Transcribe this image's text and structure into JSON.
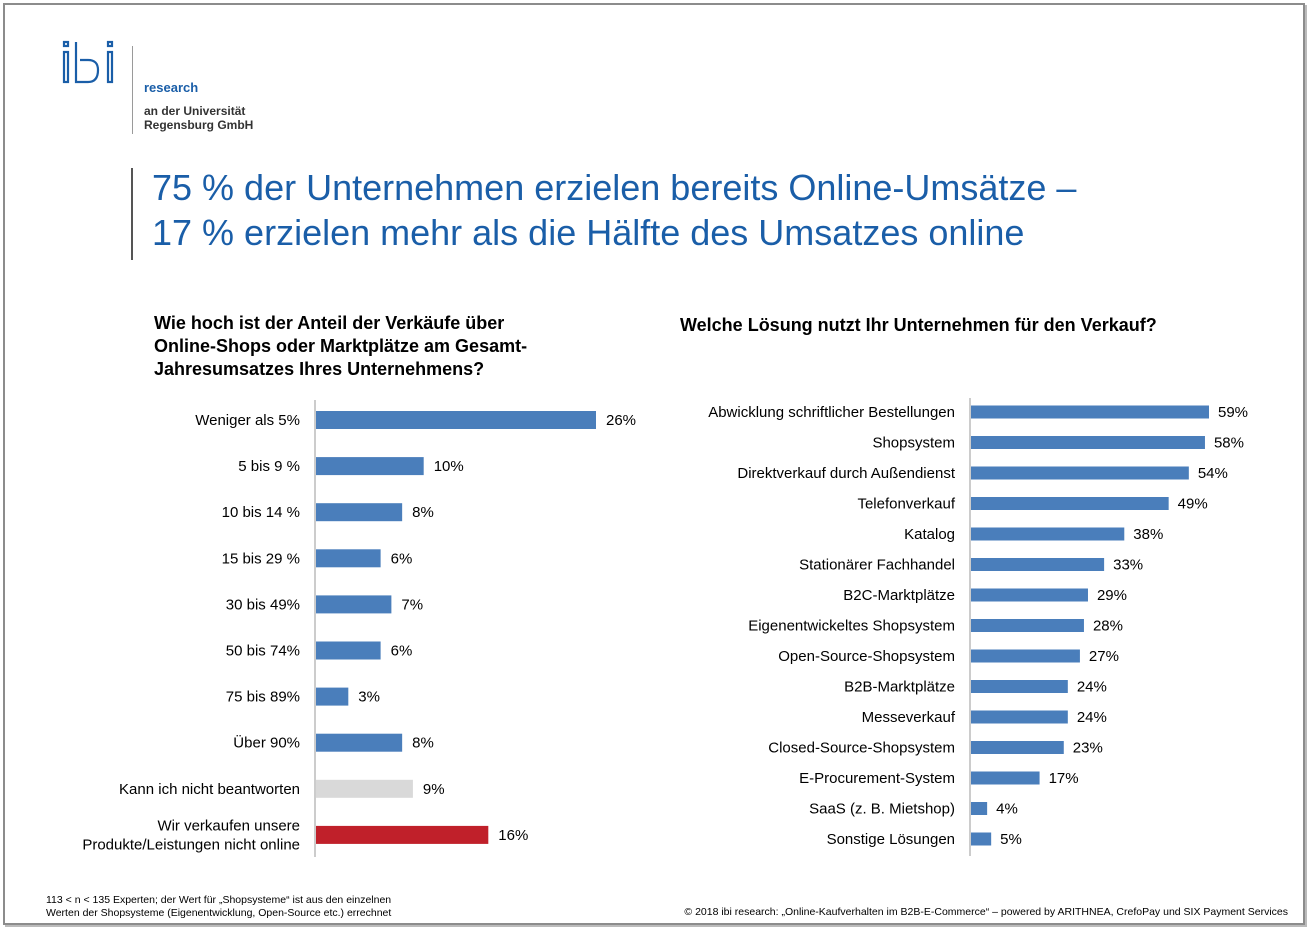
{
  "logo": {
    "research": "research",
    "uni_line1": "an der Universität",
    "uni_line2": "Regensburg GmbH"
  },
  "title": {
    "line1": "75 % der Unternehmen erzielen bereits Online-Umsätze –",
    "line2": "17 % erzielen mehr als die Hälfte des Umsatzes online"
  },
  "left_question": {
    "line1": "Wie hoch ist der Anteil der Verkäufe über",
    "line2": "Online-Shops oder Marktplätze am Gesamt-",
    "line3": "Jahresumsatzes Ihres Unternehmens?"
  },
  "right_question": "Welche Lösung nutzt Ihr Unternehmen für den Verkauf?",
  "colors": {
    "blue": "#4a7ebb",
    "gray": "#d9d9d9",
    "red": "#c0202a",
    "title": "#1a5ea8"
  },
  "chart_data": [
    {
      "type": "bar",
      "orientation": "horizontal",
      "categories": [
        [
          "Weniger als 5%"
        ],
        [
          "5 bis 9 %"
        ],
        [
          "10 bis 14 %"
        ],
        [
          "15 bis 29 %"
        ],
        [
          "30 bis 49%"
        ],
        [
          "50 bis 74%"
        ],
        [
          "75 bis 89%"
        ],
        [
          "Über 90%"
        ],
        [
          "Kann ich nicht beantworten"
        ],
        [
          "Wir verkaufen unsere",
          "Produkte/Leistungen nicht online"
        ]
      ],
      "values": [
        26,
        10,
        8,
        6,
        7,
        6,
        3,
        8,
        9,
        16
      ],
      "value_labels": [
        "26%",
        "10%",
        "8%",
        "6%",
        "7%",
        "6%",
        "3%",
        "8%",
        "9%",
        "16%"
      ],
      "bar_colors": [
        "blue",
        "blue",
        "blue",
        "blue",
        "blue",
        "blue",
        "blue",
        "blue",
        "gray",
        "red"
      ]
    },
    {
      "type": "bar",
      "orientation": "horizontal",
      "categories": [
        "Abwicklung schriftlicher Bestellungen",
        "Shopsystem",
        "Direktverkauf durch Außendienst",
        "Telefonverkauf",
        "Katalog",
        "Stationärer Fachhandel",
        "B2C-Marktplätze",
        "Eigenentwickeltes Shopsystem",
        "Open-Source-Shopsystem",
        "B2B-Marktplätze",
        "Messeverkauf",
        "Closed-Source-Shopsystem",
        "E-Procurement-System",
        "SaaS (z. B. Mietshop)",
        "Sonstige Lösungen"
      ],
      "values": [
        59,
        58,
        54,
        49,
        38,
        33,
        29,
        28,
        27,
        24,
        24,
        23,
        17,
        4,
        5
      ],
      "value_labels": [
        "59%",
        "58%",
        "54%",
        "49%",
        "38%",
        "33%",
        "29%",
        "28%",
        "27%",
        "24%",
        "24%",
        "23%",
        "17%",
        "4%",
        "5%"
      ]
    }
  ],
  "footer": {
    "note_line1": "113 < n < 135 Experten; der Wert für „Shopsysteme“ ist aus den einzelnen",
    "note_line2": "Werten der Shopsysteme (Eigenentwicklung, Open-Source etc.) errechnet",
    "copyright": "© 2018 ibi research: „Online-Kaufverhalten im B2B-E-Commerce“ – powered by ARITHNEA, CrefoPay und SIX Payment Services"
  }
}
